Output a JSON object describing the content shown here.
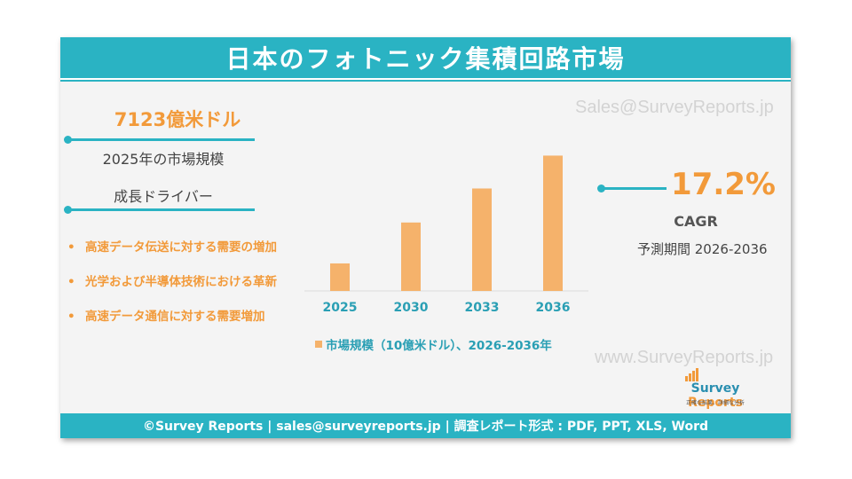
{
  "title": "日本のフォトニック集積回路市場",
  "watermarks": [
    "Sales@SurveyReports.jp",
    "www.SurveyReports.jp"
  ],
  "market_value": "7123億米ドル",
  "market_label": "2025年の市場規模",
  "drivers_title": "成長ドライバー",
  "drivers": [
    "高速データ伝送に対する需要の増加",
    "光学および半導体技術における革新",
    "高速データ通信に対する需要増加"
  ],
  "cagr": {
    "value": "17.2%",
    "label": "CAGR",
    "period": "予測期間 2026-2036"
  },
  "logo": {
    "name_part1": "Survey",
    "name_part2": " Reports",
    "tagline": "正確な結果、詳細な分析"
  },
  "footer": "©Survey Reports | sales@surveyreports.jp |  調査レポート形式 : PDF, PPT, XLS, Word",
  "colors": {
    "teal": "#2ab3c3",
    "orange": "#f29a3a",
    "bar": "#f5b26b",
    "axis_label": "#2a9fb4"
  },
  "chart_data": {
    "type": "bar",
    "categories": [
      "2025",
      "2030",
      "2033",
      "2036"
    ],
    "values": [
      712.3,
      1770,
      2650,
      3500
    ],
    "legend": "市場規模（10億米ドル）、2026-2036年",
    "ylim": [
      0,
      3900
    ],
    "grid": false
  }
}
